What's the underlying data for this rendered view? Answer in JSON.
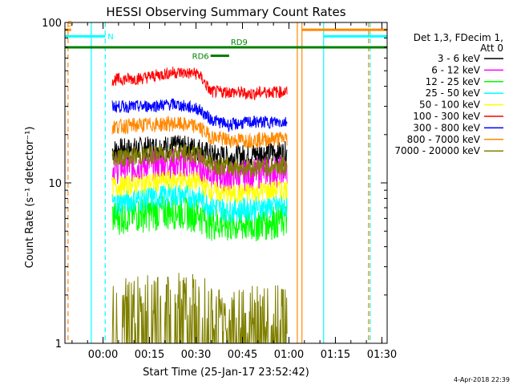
{
  "chart_data": {
    "type": "line",
    "title": "HESSI Observing Summary Count Rates",
    "xlabel": "Start Time (25-Jan-17 23:52:42)",
    "ylabel": "Count Rate (s⁻¹ detector⁻¹)",
    "y_scale": "log",
    "ylim": [
      1,
      100
    ],
    "xlim_minutes_after_start": [
      -5,
      99
    ],
    "x_ticks": [
      {
        "label": "00:00",
        "minutes": 7.3
      },
      {
        "label": "00:15",
        "minutes": 22.3
      },
      {
        "label": "00:30",
        "minutes": 37.3
      },
      {
        "label": "00:45",
        "minutes": 52.3
      },
      {
        "label": "01:00",
        "minutes": 67.3
      },
      {
        "label": "01:15",
        "minutes": 82.3
      },
      {
        "label": "01:30",
        "minutes": 97.3
      }
    ],
    "y_ticks": [
      {
        "label": "1",
        "value": 1
      },
      {
        "label": "10",
        "value": 10
      },
      {
        "label": "100",
        "value": 100
      }
    ],
    "legend_header": [
      "Det 1,3, FDecim 1,",
      "Att 0"
    ],
    "legend_placement": "right",
    "series": [
      {
        "name": "3 - 6 keV",
        "color": "#000000",
        "x": [
          10.3,
          20,
          30,
          38,
          42,
          48,
          55,
          60,
          66.8
        ],
        "y": [
          16,
          16.5,
          17,
          16.5,
          15,
          14.5,
          15,
          15.5,
          15.5
        ]
      },
      {
        "name": "6 - 12 keV",
        "color": "#ff00ff",
        "x": [
          10.3,
          20,
          30,
          38,
          42,
          48,
          55,
          60,
          66.8
        ],
        "y": [
          12.5,
          13,
          13.5,
          13,
          11.5,
          11,
          11.5,
          12,
          12
        ]
      },
      {
        "name": "12 - 25 keV",
        "color": "#00ff00",
        "x": [
          10.3,
          20,
          30,
          38,
          42,
          48,
          55,
          60,
          66.8
        ],
        "y": [
          6.2,
          6.5,
          6.8,
          6.5,
          5.8,
          5.5,
          5.6,
          5.8,
          6
        ]
      },
      {
        "name": "25 - 50 keV",
        "color": "#00ffff",
        "x": [
          10.3,
          20,
          30,
          38,
          42,
          48,
          55,
          60,
          66.8
        ],
        "y": [
          7.5,
          8,
          8.5,
          8.2,
          7.2,
          6.8,
          7,
          7.1,
          7.3
        ]
      },
      {
        "name": "50 - 100 keV",
        "color": "#ffff00",
        "x": [
          10.3,
          20,
          30,
          38,
          42,
          48,
          55,
          60,
          66.8
        ],
        "y": [
          9.5,
          10,
          10.5,
          10.2,
          9,
          8.5,
          8.8,
          9,
          9.2
        ]
      },
      {
        "name": "100 - 300 keV",
        "color": "#ff0000",
        "x": [
          10.3,
          20,
          30,
          38,
          42,
          48,
          55,
          60,
          66.8
        ],
        "y": [
          44,
          45,
          49,
          48,
          37,
          37,
          36,
          37,
          37
        ]
      },
      {
        "name": "300 - 800 keV",
        "color": "#0000ff",
        "x": [
          10.3,
          20,
          30,
          38,
          42,
          48,
          55,
          60,
          66.8
        ],
        "y": [
          30,
          30,
          31,
          29,
          25,
          23,
          24,
          24,
          24
        ]
      },
      {
        "name": "800 - 7000 keV",
        "color": "#ff8800",
        "x": [
          10.3,
          20,
          30,
          38,
          42,
          48,
          55,
          60,
          66.8
        ],
        "y": [
          22.5,
          23,
          23.5,
          22.5,
          19.5,
          18.5,
          18.5,
          18.8,
          19
        ]
      },
      {
        "name": "7000 - 20000 keV",
        "color": "#808000",
        "x": [
          10.3,
          20,
          30,
          38,
          42,
          48,
          55,
          60,
          66.8
        ],
        "y": [
          14.5,
          14.8,
          15.5,
          15,
          13.2,
          12.6,
          12.5,
          12.7,
          12.8
        ]
      }
    ],
    "attenuator_curves": [
      {
        "color": "#808000",
        "x": [
          10.3,
          20,
          30,
          38,
          42,
          48,
          55,
          60,
          66.8
        ],
        "y": [
          1.6,
          1.7,
          1.8,
          1.8,
          1.5,
          1.5,
          1.5,
          1.5,
          1.5
        ]
      }
    ],
    "annotations": {
      "vertical_lines": [
        {
          "minutes": -4,
          "color": "#ff8800",
          "dashed": true
        },
        {
          "minutes": 3.5,
          "color": "#00ffff",
          "dashed": false
        },
        {
          "minutes": 8,
          "color": "#00ffff",
          "dashed": true
        },
        {
          "minutes": 70,
          "color": "#ff8800",
          "dashed": false
        },
        {
          "minutes": 71.5,
          "color": "#ff8800",
          "dashed": false
        },
        {
          "minutes": 78.5,
          "color": "#00ffff",
          "dashed": false
        },
        {
          "minutes": 93,
          "color": "#ff8800",
          "dashed": true
        },
        {
          "minutes": 93.5,
          "color": "#00ffff",
          "dashed": true
        }
      ],
      "bars": [
        {
          "label": "S",
          "color": "#ff8800",
          "x_start": -5,
          "x_end": -3,
          "y": 90
        },
        {
          "label": "N",
          "color": "#00ffff",
          "x_start": -5,
          "x_end": 8,
          "y": 82
        },
        {
          "label": "",
          "color": "#ff8800",
          "x_start": 71.5,
          "x_end": 99,
          "y": 90
        },
        {
          "label": "",
          "color": "#00ffff",
          "x_start": 78.5,
          "x_end": 99,
          "y": 82
        },
        {
          "label": "",
          "color": "#008000",
          "x_start": -5,
          "x_end": 99,
          "y": 70
        },
        {
          "label": "RD6",
          "color": "#008000",
          "x_start": 42,
          "x_end": 48,
          "y": 62
        },
        {
          "label": "RD9",
          "color": "#008000",
          "x_start": 48,
          "x_end": 99,
          "y": 70
        }
      ]
    }
  },
  "footer_date": "4-Apr-2018 22:39"
}
